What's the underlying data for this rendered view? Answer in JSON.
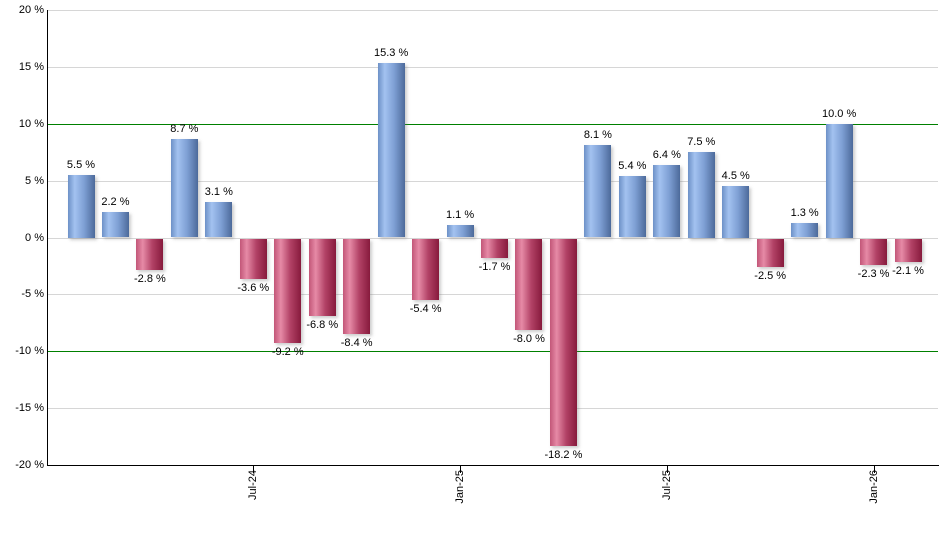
{
  "chart_data": {
    "type": "bar",
    "title": "",
    "unit": "%",
    "ylim": [
      -20,
      20
    ],
    "ytick_step": 5,
    "grid": true,
    "legend": null,
    "yticks": [
      {
        "value": 20,
        "label": "20 %"
      },
      {
        "value": 15,
        "label": "15 %"
      },
      {
        "value": 10,
        "label": "10 %"
      },
      {
        "value": 5,
        "label": "5 %"
      },
      {
        "value": 0,
        "label": "0 %"
      },
      {
        "value": -5,
        "label": "-5 %"
      },
      {
        "value": -10,
        "label": "-10 %"
      },
      {
        "value": -15,
        "label": "-15 %"
      },
      {
        "value": -20,
        "label": "-20 %"
      }
    ],
    "highlight_lines": [
      10,
      -10
    ],
    "bars": [
      {
        "value": 5.5,
        "label": "5.5 %"
      },
      {
        "value": 2.2,
        "label": "2.2 %"
      },
      {
        "value": -2.8,
        "label": "-2.8 %"
      },
      {
        "value": 8.7,
        "label": "8.7 %"
      },
      {
        "value": 3.1,
        "label": "3.1 %"
      },
      {
        "value": -3.6,
        "label": "-3.6 %"
      },
      {
        "value": -9.2,
        "label": "-9.2 %"
      },
      {
        "value": -6.8,
        "label": "-6.8 %"
      },
      {
        "value": -8.4,
        "label": "-8.4 %"
      },
      {
        "value": 15.3,
        "label": "15.3 %"
      },
      {
        "value": -5.4,
        "label": "-5.4 %"
      },
      {
        "value": 1.1,
        "label": "1.1 %"
      },
      {
        "value": -1.7,
        "label": "-1.7 %"
      },
      {
        "value": -8.0,
        "label": "-8.0 %"
      },
      {
        "value": -18.2,
        "label": "-18.2 %"
      },
      {
        "value": 8.1,
        "label": "8.1 %"
      },
      {
        "value": 5.4,
        "label": "5.4 %"
      },
      {
        "value": 6.4,
        "label": "6.4 %"
      },
      {
        "value": 7.5,
        "label": "7.5 %"
      },
      {
        "value": 4.5,
        "label": "4.5 %"
      },
      {
        "value": -2.5,
        "label": "-2.5 %"
      },
      {
        "value": 1.3,
        "label": "1.3 %"
      },
      {
        "value": 10.0,
        "label": "10.0 %"
      },
      {
        "value": -2.3,
        "label": "-2.3 %"
      },
      {
        "value": -2.1,
        "label": "-2.1 %"
      }
    ],
    "xticks": [
      {
        "bar_index": 5,
        "label": "Jul-24"
      },
      {
        "bar_index": 11,
        "label": "Jan-25"
      },
      {
        "bar_index": 17,
        "label": "Jul-25"
      },
      {
        "bar_index": 23,
        "label": "Jan-26"
      }
    ],
    "colors": {
      "positive_bar_start": "#6d91c7",
      "positive_bar_light": "#a3c2f0",
      "positive_bar_mid": "#7e9fd4",
      "positive_bar_end": "#4c6a9a",
      "negative_bar_start": "#c25678",
      "negative_bar_light": "#e68aa6",
      "negative_bar_mid": "#b24266",
      "negative_bar_end": "#871a3c",
      "gridline": "#d6d6d6",
      "highlight_line": "#008000",
      "axis": "#000000",
      "text": "#000000",
      "background": "#ffffff"
    }
  }
}
